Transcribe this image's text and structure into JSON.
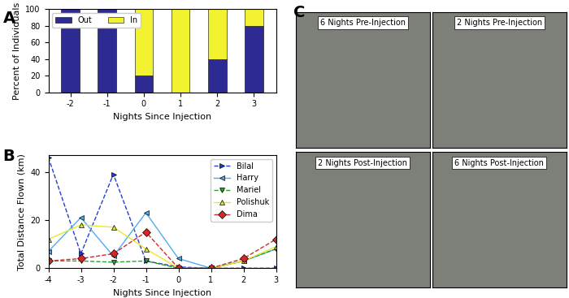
{
  "chart_data": [
    {
      "type": "bar",
      "annotations": [
        "A"
      ],
      "stacked": true,
      "legend": "upper left",
      "x_label": "Nights Since Injection",
      "y_label": "Percent of Individuals",
      "categories": [
        "-2",
        "-1",
        "0",
        "1",
        "2",
        "3"
      ],
      "series": [
        {
          "name": "Out",
          "color": "#2e2a94",
          "values": [
            100,
            100,
            20,
            0,
            40,
            80
          ]
        },
        {
          "name": "In",
          "color": "#f2f230",
          "values": [
            0,
            0,
            80,
            100,
            60,
            20
          ]
        }
      ],
      "ylim": [
        0,
        100
      ],
      "yticks": [
        0,
        20,
        40,
        60,
        80,
        100
      ]
    },
    {
      "type": "line",
      "annotations": [
        "B"
      ],
      "legend": "upper right",
      "x_label": "Nights Since Injection",
      "y_label": "Total Distance Flown (km)",
      "x": [
        -4,
        -3,
        -2,
        -1,
        0,
        1,
        2,
        3
      ],
      "series": [
        {
          "name": "Bilal",
          "color": "#1f3fcf",
          "marker": ">",
          "line_style": "dashed",
          "values": [
            46,
            6,
            39,
            3,
            0.5,
            0,
            0,
            0
          ]
        },
        {
          "name": "Harry",
          "color": "#55aaee",
          "marker": "<",
          "line_style": "solid",
          "values": [
            7,
            21,
            5,
            23,
            4,
            0,
            3,
            8
          ]
        },
        {
          "name": "Mariel",
          "color": "#2ca02c",
          "marker": "v",
          "line_style": "dashed",
          "values": [
            3,
            3,
            2.5,
            3,
            0,
            0,
            3,
            8
          ]
        },
        {
          "name": "Polishuk",
          "color": "#e8e830",
          "marker": "^",
          "line_style": "solid",
          "values": [
            12,
            18,
            17,
            8,
            0,
            0,
            3,
            9
          ]
        },
        {
          "name": "Dima",
          "color": "#d62728",
          "marker": "D",
          "line_style": "dashed",
          "values": [
            3,
            4,
            6,
            15,
            0,
            0,
            4,
            12
          ]
        }
      ],
      "xlim": [
        -4,
        3
      ],
      "xticks": [
        -4,
        -3,
        -2,
        -1,
        0,
        1,
        2,
        3
      ],
      "ylim": [
        0,
        47
      ],
      "yticks": [
        0,
        20,
        40
      ]
    },
    {
      "type": "image",
      "annotations": [
        "C"
      ],
      "panels": [
        {
          "title": "6 Nights Pre-Injection"
        },
        {
          "title": "2 Nights Pre-Injection"
        },
        {
          "title": "2 Nights Post-Injection"
        },
        {
          "title": "6 Nights Post-Injection"
        }
      ]
    }
  ]
}
